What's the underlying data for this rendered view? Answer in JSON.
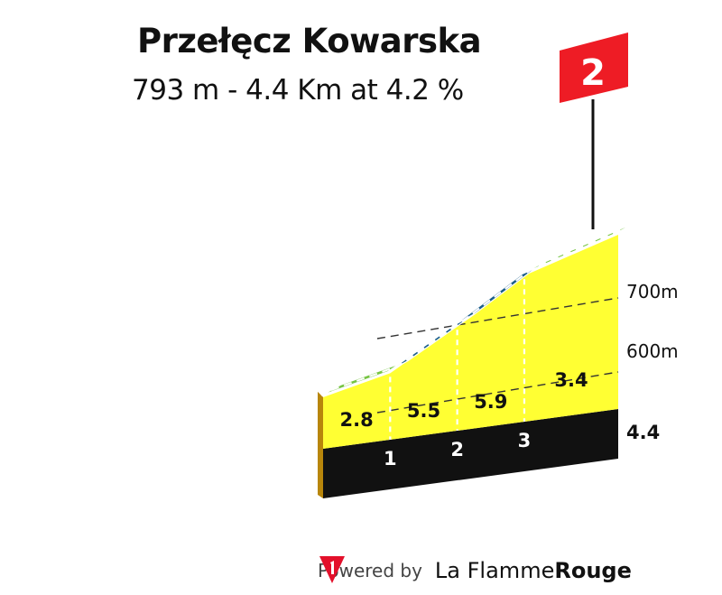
{
  "title": "Przełęcz Kowarska",
  "subtitle": "793 m - 4.4 Km at 4.2 %",
  "category_badge": {
    "text": "2",
    "color": "#ee1c25"
  },
  "chart_data": {
    "type": "area",
    "title": "Przełęcz Kowarska",
    "subtitle": "793 m - 4.4 Km at 4.2 %",
    "total_distance_km": 4.4,
    "summit_altitude_m": 793,
    "average_gradient_pct": 4.2,
    "altitude_ticks": [
      "600m",
      "700m"
    ],
    "km_markers": [
      "1",
      "2",
      "3"
    ],
    "total_distance_label": "4.4",
    "segments": [
      {
        "start_km": 0,
        "end_km": 1,
        "gradient": 2.8,
        "label": "2.8",
        "color": "#76c442"
      },
      {
        "start_km": 1,
        "end_km": 2,
        "gradient": 5.5,
        "label": "5.5",
        "color": "#1b5e8a"
      },
      {
        "start_km": 2,
        "end_km": 3,
        "gradient": 5.9,
        "label": "5.9",
        "color": "#1b5e8a"
      },
      {
        "start_km": 3,
        "end_km": 4.4,
        "gradient": 3.4,
        "label": "3.4",
        "color": "#76c442"
      }
    ],
    "colors": {
      "profile_fill": "#ffff33",
      "base": "#111111",
      "start_side": "#b8860b"
    }
  },
  "footer": {
    "powered_by": "Powered by",
    "brand_part1": "La Flamme",
    "brand_part2": "Rouge",
    "logo_color": "#e3102b"
  }
}
